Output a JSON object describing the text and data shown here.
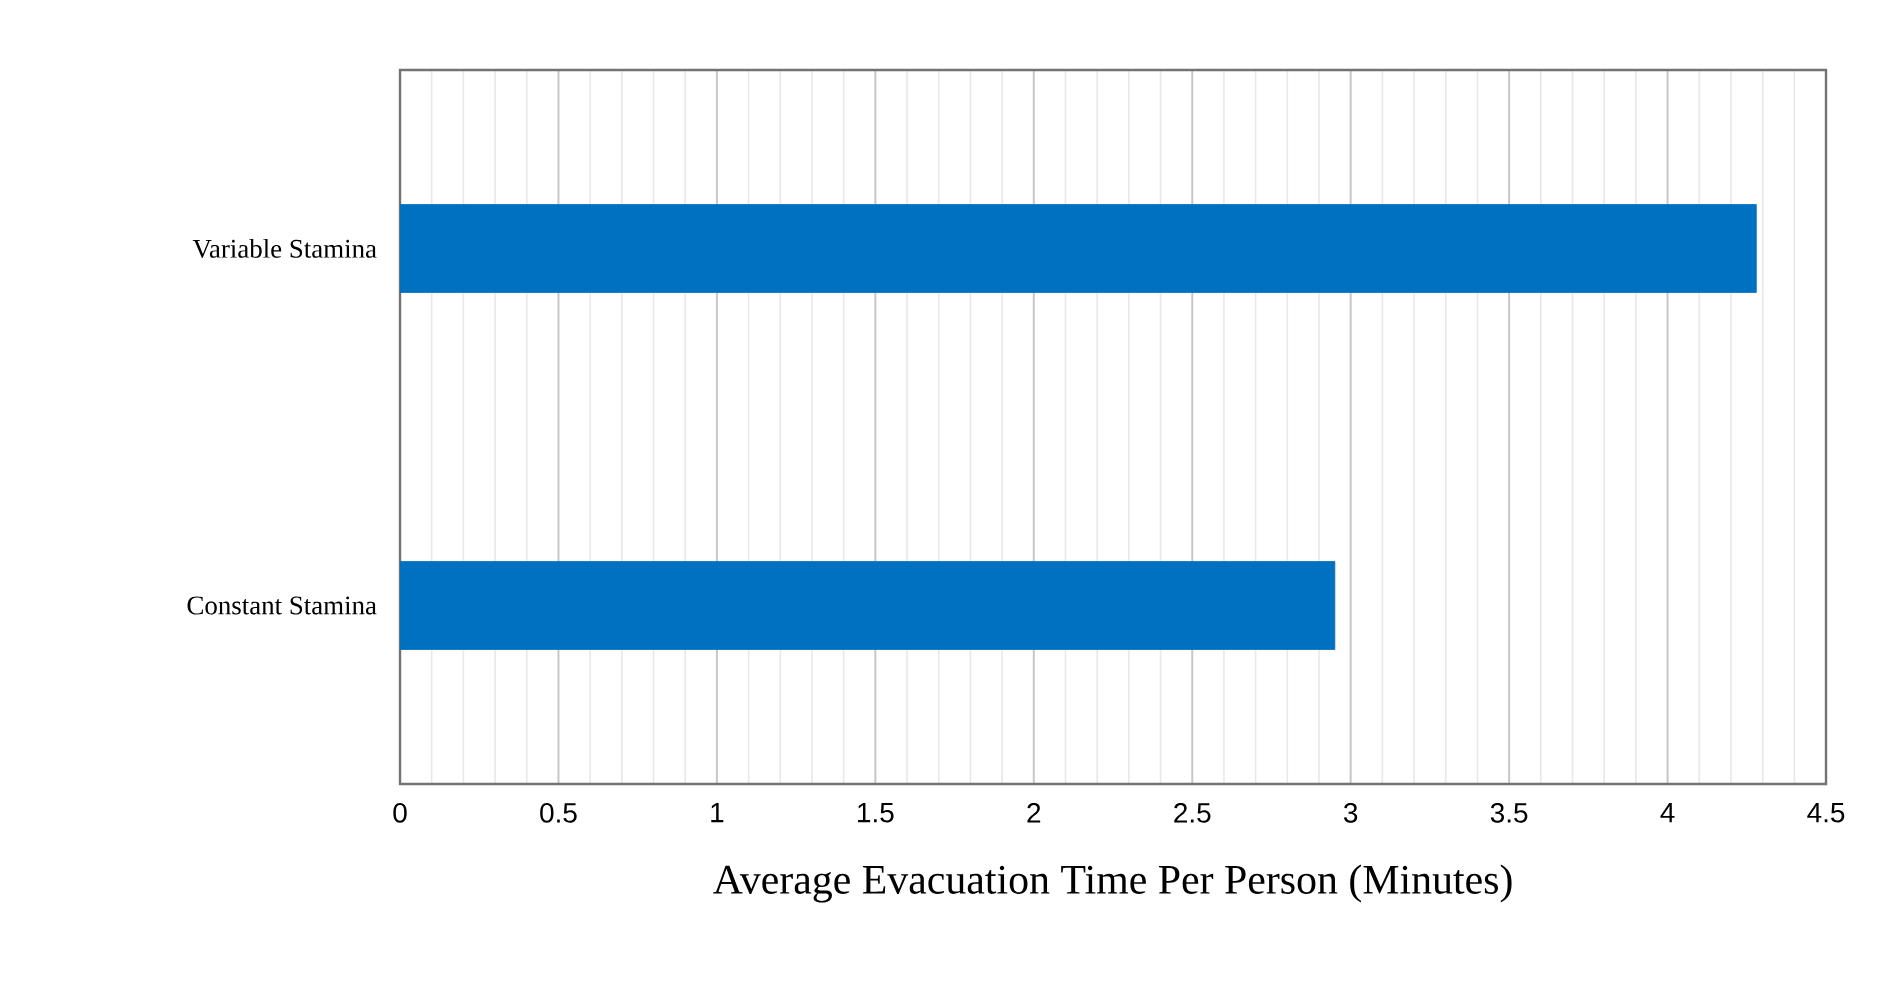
{
  "chart_data": {
    "type": "bar",
    "orientation": "horizontal",
    "categories": [
      "Variable Stamina",
      "Constant Stamina"
    ],
    "values": [
      4.28,
      2.95
    ],
    "color": "#0070c0",
    "xlabel": "Average Evacuation Time Per Person (Minutes)",
    "xlim": [
      0,
      4.5
    ],
    "xticks": [
      0,
      0.5,
      1,
      1.5,
      2,
      2.5,
      3,
      3.5,
      4,
      4.5
    ],
    "grid": "x"
  }
}
